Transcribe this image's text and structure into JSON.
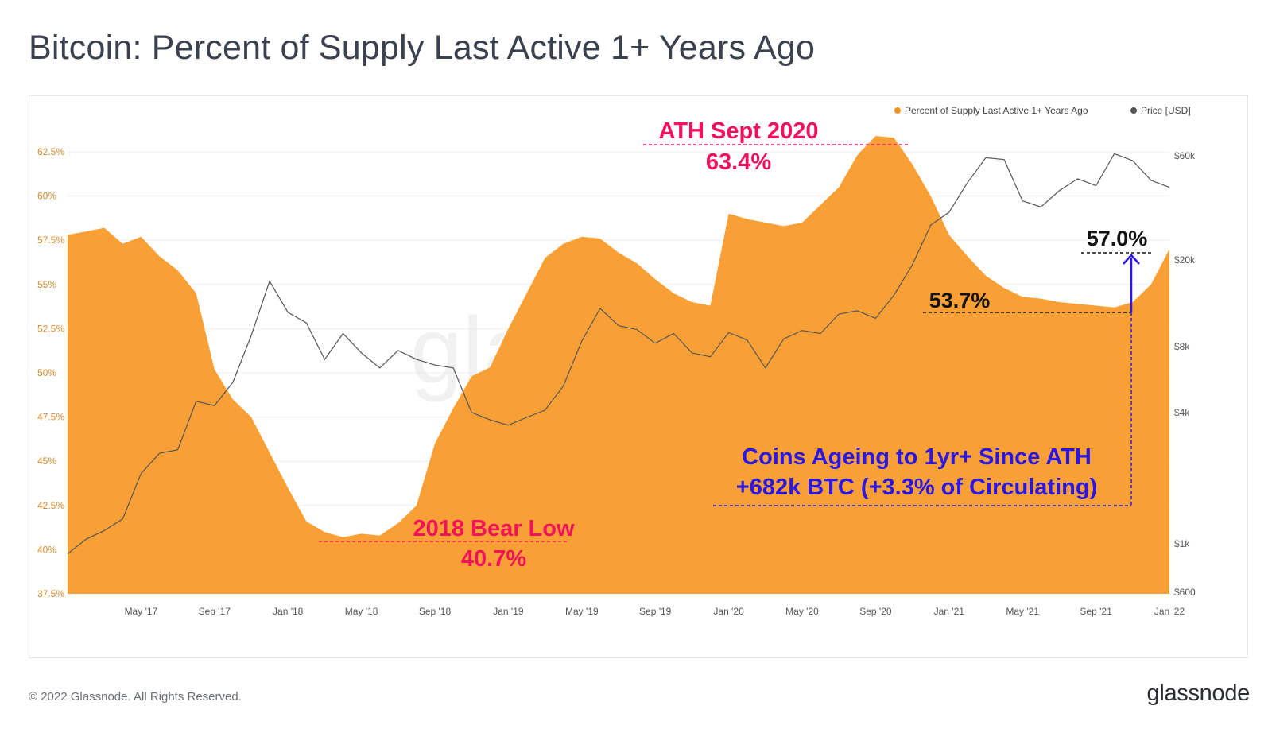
{
  "page": {
    "title": "Bitcoin: Percent of Supply Last Active 1+ Years Ago",
    "copyright": "© 2022 Glassnode. All Rights Reserved.",
    "logo": "glassnode",
    "watermark": "glassnode"
  },
  "chart_data": {
    "type": "area",
    "title": "Bitcoin: Percent of Supply Last Active 1+ Years Ago",
    "x_tick_labels": [
      "May '17",
      "Sep '17",
      "Jan '18",
      "May '18",
      "Sep '18",
      "Jan '19",
      "May '19",
      "Sep '19",
      "Jan '20",
      "May '20",
      "Sep '20",
      "Jan '21",
      "May '21",
      "Sep '21",
      "Jan '22"
    ],
    "y_left": {
      "ticks": [
        "37.5%",
        "40%",
        "42.5%",
        "45%",
        "47.5%",
        "50%",
        "52.5%",
        "55%",
        "57.5%",
        "60%",
        "62.5%"
      ],
      "min": 37.5,
      "max": 62.5
    },
    "y_right": {
      "ticks": [
        "$600",
        "$1k",
        "$4k",
        "$8k",
        "$20k",
        "$60k"
      ],
      "scale": "log"
    },
    "legend": {
      "placement": "top-right",
      "items": [
        {
          "label": "Percent of Supply Last Active 1+ Years Ago",
          "color": "#f7931a"
        },
        {
          "label": "Price [USD]",
          "color": "#555555"
        }
      ]
    },
    "series": [
      {
        "name": "Percent of Supply Last Active 1+ Years Ago",
        "color": "#f7931a",
        "points": [
          [
            "Jan '17",
            57.8
          ],
          [
            "Feb '17",
            58.0
          ],
          [
            "Mar '17",
            58.2
          ],
          [
            "Apr '17",
            57.3
          ],
          [
            "May '17",
            57.7
          ],
          [
            "Jun '17",
            56.6
          ],
          [
            "Jul '17",
            55.8
          ],
          [
            "Aug '17",
            54.5
          ],
          [
            "Sep '17",
            50.2
          ],
          [
            "Oct '17",
            48.5
          ],
          [
            "Nov '17",
            47.5
          ],
          [
            "Dec '17",
            45.5
          ],
          [
            "Jan '18",
            43.5
          ],
          [
            "Feb '18",
            41.6
          ],
          [
            "Mar '18",
            41.0
          ],
          [
            "Apr '18",
            40.7
          ],
          [
            "May '18",
            40.9
          ],
          [
            "Jun '18",
            40.8
          ],
          [
            "Jul '18",
            41.5
          ],
          [
            "Aug '18",
            42.5
          ],
          [
            "Sep '18",
            46.0
          ],
          [
            "Oct '18",
            48.0
          ],
          [
            "Nov '18",
            49.8
          ],
          [
            "Dec '18",
            50.3
          ],
          [
            "Jan '19",
            52.5
          ],
          [
            "Feb '19",
            54.5
          ],
          [
            "Mar '19",
            56.5
          ],
          [
            "Apr '19",
            57.3
          ],
          [
            "May '19",
            57.7
          ],
          [
            "Jun '19",
            57.6
          ],
          [
            "Jul '19",
            56.8
          ],
          [
            "Aug '19",
            56.2
          ],
          [
            "Sep '19",
            55.3
          ],
          [
            "Oct '19",
            54.5
          ],
          [
            "Nov '19",
            54.0
          ],
          [
            "Dec '19",
            53.8
          ],
          [
            "Jan '20",
            59.0
          ],
          [
            "Feb '20",
            58.7
          ],
          [
            "Mar '20",
            58.5
          ],
          [
            "Apr '20",
            58.3
          ],
          [
            "May '20",
            58.5
          ],
          [
            "Jun '20",
            59.5
          ],
          [
            "Jul '20",
            60.5
          ],
          [
            "Aug '20",
            62.3
          ],
          [
            "Sep '20",
            63.4
          ],
          [
            "Oct '20",
            63.3
          ],
          [
            "Nov '20",
            61.8
          ],
          [
            "Dec '20",
            60.0
          ],
          [
            "Jan '21",
            57.8
          ],
          [
            "Feb '21",
            56.6
          ],
          [
            "Mar '21",
            55.5
          ],
          [
            "Apr '21",
            54.8
          ],
          [
            "May '21",
            54.3
          ],
          [
            "Jun '21",
            54.2
          ],
          [
            "Jul '21",
            54.0
          ],
          [
            "Aug '21",
            53.9
          ],
          [
            "Sep '21",
            53.8
          ],
          [
            "Oct '21",
            53.7
          ],
          [
            "Nov '21",
            54.0
          ],
          [
            "Dec '21",
            55.0
          ],
          [
            "Jan '22",
            57.0
          ]
        ]
      },
      {
        "name": "Price [USD]",
        "color": "#555555",
        "points": [
          [
            "Jan '17",
            900
          ],
          [
            "Feb '17",
            1050
          ],
          [
            "Mar '17",
            1150
          ],
          [
            "Apr '17",
            1300
          ],
          [
            "May '17",
            2100
          ],
          [
            "Jun '17",
            2600
          ],
          [
            "Jul '17",
            2700
          ],
          [
            "Aug '17",
            4500
          ],
          [
            "Sep '17",
            4300
          ],
          [
            "Oct '17",
            5500
          ],
          [
            "Nov '17",
            9000
          ],
          [
            "Dec '17",
            16000
          ],
          [
            "Jan '18",
            11500
          ],
          [
            "Feb '18",
            10300
          ],
          [
            "Mar '18",
            7000
          ],
          [
            "Apr '18",
            9200
          ],
          [
            "May '18",
            7500
          ],
          [
            "Jun '18",
            6400
          ],
          [
            "Jul '18",
            7700
          ],
          [
            "Aug '18",
            7000
          ],
          [
            "Sep '18",
            6600
          ],
          [
            "Oct '18",
            6400
          ],
          [
            "Nov '18",
            4000
          ],
          [
            "Dec '18",
            3700
          ],
          [
            "Jan '19",
            3500
          ],
          [
            "Feb '19",
            3800
          ],
          [
            "Mar '19",
            4100
          ],
          [
            "Apr '19",
            5300
          ],
          [
            "May '19",
            8500
          ],
          [
            "Jun '19",
            12000
          ],
          [
            "Jul '19",
            10000
          ],
          [
            "Aug '19",
            9600
          ],
          [
            "Sep '19",
            8300
          ],
          [
            "Oct '19",
            9200
          ],
          [
            "Nov '19",
            7500
          ],
          [
            "Dec '19",
            7200
          ],
          [
            "Jan '20",
            9300
          ],
          [
            "Feb '20",
            8600
          ],
          [
            "Mar '20",
            6400
          ],
          [
            "Apr '20",
            8700
          ],
          [
            "May '20",
            9500
          ],
          [
            "Jun '20",
            9200
          ],
          [
            "Jul '20",
            11300
          ],
          [
            "Aug '20",
            11700
          ],
          [
            "Sep '20",
            10800
          ],
          [
            "Oct '20",
            13800
          ],
          [
            "Nov '20",
            19000
          ],
          [
            "Dec '20",
            28900
          ],
          [
            "Jan '21",
            33100
          ],
          [
            "Feb '21",
            45200
          ],
          [
            "Mar '21",
            58800
          ],
          [
            "Apr '21",
            57700
          ],
          [
            "May '21",
            37300
          ],
          [
            "Jun '21",
            35000
          ],
          [
            "Jul '21",
            41500
          ],
          [
            "Aug '21",
            47100
          ],
          [
            "Sep '21",
            43800
          ],
          [
            "Oct '21",
            61300
          ],
          [
            "Nov '21",
            57000
          ],
          [
            "Dec '21",
            46300
          ],
          [
            "Jan '22",
            43000
          ]
        ]
      }
    ],
    "annotations": [
      {
        "id": "ath",
        "lines": [
          "ATH Sept 2020",
          "63.4%"
        ],
        "color": "#f2125b"
      },
      {
        "id": "bear",
        "lines": [
          "2018 Bear Low",
          "40.7%"
        ],
        "color": "#f2125b"
      },
      {
        "id": "now",
        "lines": [
          "57.0%"
        ],
        "color": "#111111"
      },
      {
        "id": "trough",
        "lines": [
          "53.7%"
        ],
        "color": "#111111"
      },
      {
        "id": "ageing",
        "lines": [
          "Coins Ageing to 1yr+ Since ATH",
          "+682k BTC (+3.3% of Circulating)"
        ],
        "color": "#2b16e8"
      }
    ]
  }
}
